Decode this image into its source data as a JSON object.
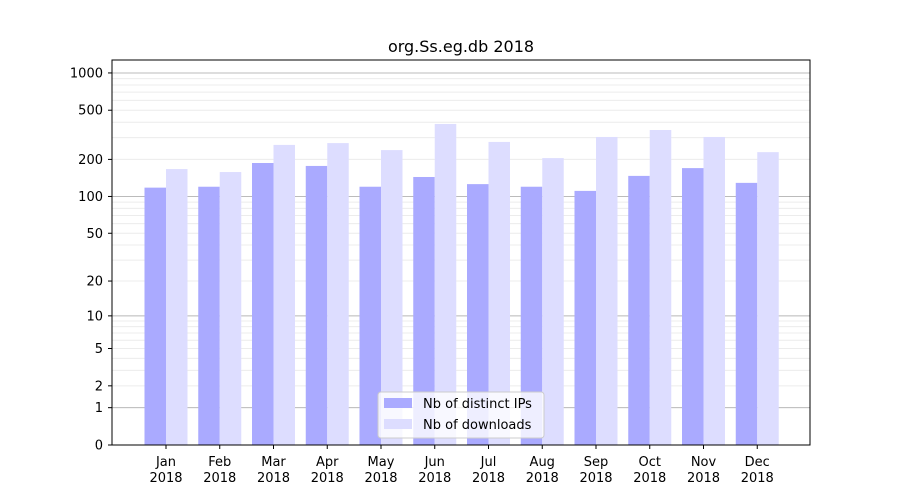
{
  "chart_data": {
    "type": "bar",
    "title": "org.Ss.eg.db 2018",
    "xlabel": "",
    "ylabel": "",
    "yscale": "log(1+y)",
    "ylim": [
      0,
      1100
    ],
    "yticks": [
      0,
      1,
      2,
      5,
      10,
      20,
      50,
      100,
      200,
      500,
      1000
    ],
    "grid": true,
    "legend_position": "bottom-center",
    "categories": [
      "Jan\n2018",
      "Feb\n2018",
      "Mar\n2018",
      "Apr\n2018",
      "May\n2018",
      "Jun\n2018",
      "Jul\n2018",
      "Aug\n2018",
      "Sep\n2018",
      "Oct\n2018",
      "Nov\n2018",
      "Dec\n2018"
    ],
    "series": [
      {
        "name": "Nb of distinct IPs",
        "color": "#aaaaff",
        "values": [
          118,
          120,
          187,
          177,
          120,
          144,
          126,
          120,
          111,
          147,
          170,
          129
        ]
      },
      {
        "name": "Nb of downloads",
        "color": "#ddddff",
        "values": [
          167,
          158,
          262,
          271,
          238,
          387,
          277,
          205,
          304,
          346,
          304,
          229
        ]
      }
    ]
  }
}
